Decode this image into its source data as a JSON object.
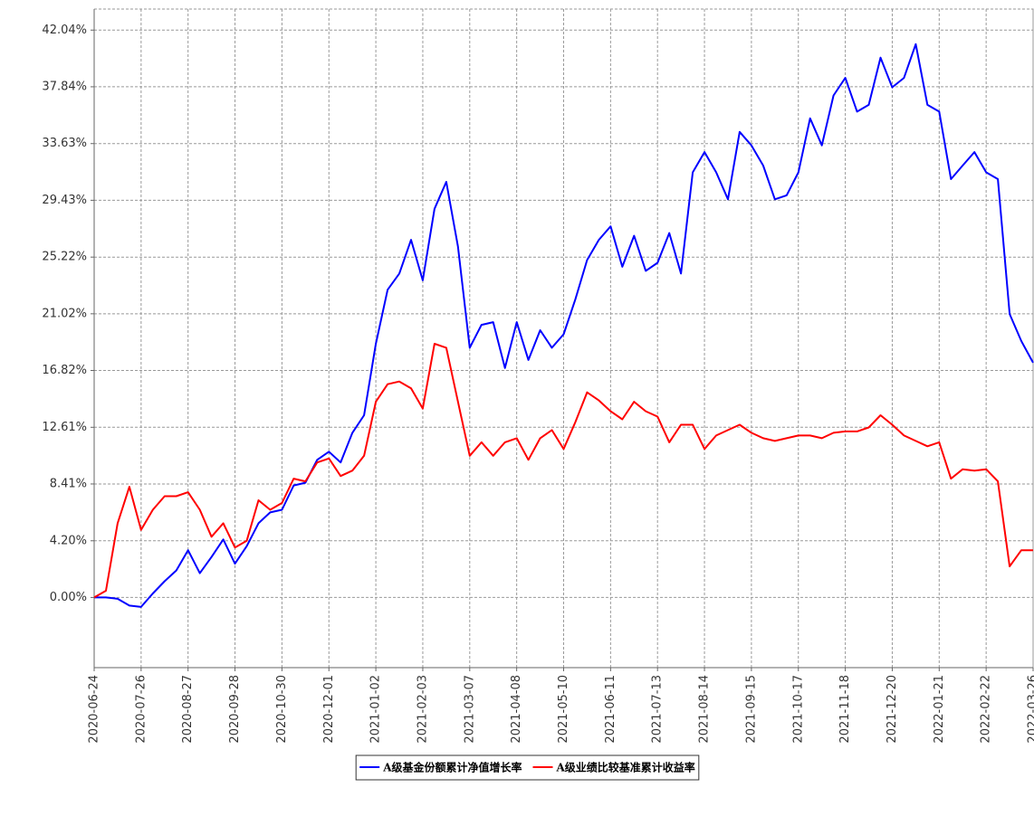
{
  "chart_data": {
    "type": "line",
    "x": [
      "2020-06-24",
      "2020-07-02",
      "2020-07-10",
      "2020-07-18",
      "2020-07-26",
      "2020-08-03",
      "2020-08-11",
      "2020-08-19",
      "2020-08-27",
      "2020-09-04",
      "2020-09-12",
      "2020-09-20",
      "2020-09-28",
      "2020-10-06",
      "2020-10-14",
      "2020-10-22",
      "2020-10-30",
      "2020-11-07",
      "2020-11-15",
      "2020-11-23",
      "2020-12-01",
      "2020-12-09",
      "2020-12-17",
      "2020-12-25",
      "2021-01-02",
      "2021-01-10",
      "2021-01-18",
      "2021-01-26",
      "2021-02-03",
      "2021-02-11",
      "2021-02-19",
      "2021-02-27",
      "2021-03-07",
      "2021-03-15",
      "2021-03-23",
      "2021-03-31",
      "2021-04-08",
      "2021-04-16",
      "2021-04-24",
      "2021-05-02",
      "2021-05-10",
      "2021-05-18",
      "2021-05-26",
      "2021-06-03",
      "2021-06-11",
      "2021-06-19",
      "2021-06-27",
      "2021-07-05",
      "2021-07-13",
      "2021-07-21",
      "2021-07-29",
      "2021-08-06",
      "2021-08-14",
      "2021-08-22",
      "2021-08-30",
      "2021-09-07",
      "2021-09-15",
      "2021-09-23",
      "2021-10-01",
      "2021-10-09",
      "2021-10-17",
      "2021-10-25",
      "2021-11-02",
      "2021-11-10",
      "2021-11-18",
      "2021-11-26",
      "2021-12-04",
      "2021-12-12",
      "2021-12-20",
      "2021-12-28",
      "2022-01-05",
      "2022-01-13",
      "2022-01-21",
      "2022-01-29",
      "2022-02-06",
      "2022-02-14",
      "2022-02-22",
      "2022-03-02",
      "2022-03-10",
      "2022-03-18",
      "2022-03-26"
    ],
    "series": [
      {
        "name": "A级基金份额累计净值增长率",
        "color": "#0000ff",
        "values": [
          0,
          0,
          -0.1,
          -0.6,
          -0.7,
          0.3,
          1.2,
          2,
          3.5,
          1.8,
          3,
          4.3,
          2.5,
          3.8,
          5.5,
          6.3,
          6.5,
          8.3,
          8.5,
          10.2,
          10.8,
          10,
          12.2,
          13.5,
          18.8,
          22.8,
          24,
          26.5,
          23.5,
          28.8,
          30.8,
          26,
          18.5,
          20.2,
          20.4,
          17,
          20.4,
          17.6,
          19.8,
          18.5,
          19.5,
          22.1,
          25,
          26.5,
          27.5,
          24.5,
          26.8,
          24.2,
          24.8,
          27,
          24,
          31.5,
          33,
          31.5,
          29.5,
          34.5,
          33.5,
          32,
          29.5,
          29.8,
          31.5,
          35.5,
          33.5,
          37.2,
          38.5,
          36,
          36.5,
          40,
          37.8,
          38.5,
          41,
          36.5,
          36,
          31,
          32,
          33,
          31.5,
          31,
          21,
          19,
          17.4
        ]
      },
      {
        "name": "A级业绩比较基准累计收益率",
        "color": "#ff0000",
        "values": [
          0,
          0.5,
          5.5,
          8.2,
          5,
          6.5,
          7.5,
          7.5,
          7.8,
          6.5,
          4.5,
          5.5,
          3.7,
          4.2,
          7.2,
          6.5,
          7,
          8.8,
          8.6,
          10,
          10.3,
          9,
          9.4,
          10.5,
          14.5,
          15.8,
          16,
          15.5,
          14,
          18.8,
          18.5,
          14.5,
          10.5,
          11.5,
          10.5,
          11.5,
          11.8,
          10.2,
          11.8,
          12.4,
          11,
          13,
          15.2,
          14.6,
          13.8,
          13.2,
          14.5,
          13.8,
          13.4,
          11.5,
          12.8,
          12.8,
          11,
          12,
          12.4,
          12.8,
          12.2,
          11.8,
          11.6,
          11.8,
          12,
          12,
          11.8,
          12.2,
          12.3,
          12.3,
          12.6,
          13.5,
          12.8,
          12,
          11.6,
          11.2,
          11.5,
          8.8,
          9.5,
          9.4,
          9.5,
          8.6,
          2.3,
          3.5,
          3.5
        ]
      }
    ],
    "xlim": [
      "2020-06-24",
      "2022-03-26"
    ],
    "xticks": [
      "2020-06-24",
      "2020-07-26",
      "2020-08-27",
      "2020-09-28",
      "2020-10-30",
      "2020-12-01",
      "2021-01-02",
      "2021-02-03",
      "2021-03-07",
      "2021-04-08",
      "2021-05-10",
      "2021-06-11",
      "2021-07-13",
      "2021-08-14",
      "2021-09-15",
      "2021-10-17",
      "2021-11-18",
      "2021-12-20",
      "2022-01-21",
      "2022-02-22",
      "2022-03-26"
    ],
    "ylim": [
      -5.2,
      43.6
    ],
    "yticks": [
      {
        "value": 0,
        "label": "0.00%"
      },
      {
        "value": 4.2,
        "label": "4.20%"
      },
      {
        "value": 8.41,
        "label": "8.41%"
      },
      {
        "value": 12.61,
        "label": "12.61%"
      },
      {
        "value": 16.82,
        "label": "16.82%"
      },
      {
        "value": 21.02,
        "label": "21.02%"
      },
      {
        "value": 25.22,
        "label": "25.22%"
      },
      {
        "value": 29.43,
        "label": "29.43%"
      },
      {
        "value": 33.63,
        "label": "33.63%"
      },
      {
        "value": 37.84,
        "label": "37.84%"
      },
      {
        "value": 42.04,
        "label": "42.04%"
      }
    ],
    "grid": true,
    "legend": "bottom"
  }
}
